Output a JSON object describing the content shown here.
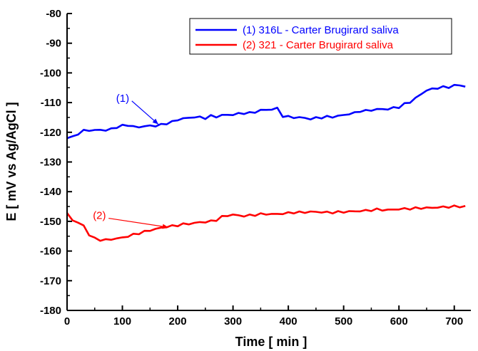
{
  "chart_data": {
    "type": "line",
    "xlabel": "Time [ min ]",
    "ylabel": "E [ mV vs Ag/AgCl ]",
    "xlim": [
      0,
      730
    ],
    "ylim": [
      -180,
      -80
    ],
    "xticks": [
      0,
      100,
      200,
      300,
      400,
      500,
      600,
      700
    ],
    "yticks": [
      -80,
      -90,
      -100,
      -110,
      -120,
      -130,
      -140,
      -150,
      -160,
      -170,
      -180
    ],
    "xtick_labels": [
      "0",
      "100",
      "200",
      "300",
      "400",
      "500",
      "600",
      "700"
    ],
    "ytick_labels": [
      "-80",
      "-90",
      "-100",
      "-110",
      "-120",
      "-130",
      "-140",
      "-150",
      "-160",
      "-170",
      "-180"
    ],
    "grid": false,
    "legend_position": "top-right",
    "series": [
      {
        "name": "(1) 316L - Carter Brugirard saliva",
        "color": "#0000ff",
        "x": [
          0,
          10,
          20,
          30,
          40,
          50,
          60,
          70,
          80,
          90,
          100,
          110,
          120,
          130,
          140,
          150,
          160,
          170,
          180,
          190,
          200,
          210,
          220,
          230,
          240,
          250,
          260,
          270,
          280,
          290,
          300,
          310,
          320,
          330,
          340,
          350,
          360,
          370,
          380,
          390,
          400,
          410,
          420,
          430,
          440,
          450,
          460,
          470,
          480,
          490,
          500,
          510,
          520,
          530,
          540,
          550,
          560,
          570,
          580,
          590,
          600,
          610,
          620,
          630,
          640,
          650,
          660,
          670,
          680,
          690,
          700,
          710,
          720
        ],
        "values": [
          -122,
          -121.5,
          -120.5,
          -119.5,
          -119.2,
          -119.5,
          -119,
          -119.5,
          -118.8,
          -118.3,
          -117.8,
          -117.5,
          -118.2,
          -118.2,
          -118,
          -117.8,
          -117.8,
          -117.5,
          -117,
          -116.5,
          -115.8,
          -115.3,
          -115.2,
          -114.8,
          -115,
          -115.2,
          -114.5,
          -114.8,
          -114.2,
          -114.2,
          -114,
          -113.8,
          -113.5,
          -113.5,
          -113.2,
          -112.5,
          -112.5,
          -112.2,
          -112,
          -114.5,
          -114.8,
          -115,
          -115,
          -115.2,
          -115.5,
          -115.2,
          -115,
          -114.8,
          -114.8,
          -114.5,
          -114.2,
          -113.8,
          -113.5,
          -112.8,
          -112.8,
          -112.5,
          -112.3,
          -112.2,
          -112.2,
          -111.8,
          -111.5,
          -110.5,
          -109.8,
          -108.5,
          -107.2,
          -105.8,
          -105.5,
          -105,
          -104.8,
          -104.8,
          -104.2,
          -104.2,
          -104.5
        ]
      },
      {
        "name": "(2) 321 - Carter Brugirard saliva",
        "color": "#ff0000",
        "x": [
          0,
          10,
          20,
          30,
          40,
          50,
          60,
          70,
          80,
          90,
          100,
          110,
          120,
          130,
          140,
          150,
          160,
          170,
          180,
          190,
          200,
          210,
          220,
          230,
          240,
          250,
          260,
          270,
          280,
          290,
          300,
          310,
          320,
          330,
          340,
          350,
          360,
          370,
          380,
          390,
          400,
          410,
          420,
          430,
          440,
          450,
          460,
          470,
          480,
          490,
          500,
          510,
          520,
          530,
          540,
          550,
          560,
          570,
          580,
          590,
          600,
          610,
          620,
          630,
          640,
          650,
          660,
          670,
          680,
          690,
          700,
          710,
          720
        ],
        "values": [
          -147.5,
          -149.5,
          -150.5,
          -151.5,
          -154.5,
          -155.8,
          -156.2,
          -156.3,
          -156,
          -155.8,
          -155.5,
          -155,
          -154.5,
          -154,
          -153.5,
          -153,
          -152.6,
          -152.2,
          -151.8,
          -151.6,
          -151.3,
          -151,
          -150.8,
          -150.6,
          -150.3,
          -150.2,
          -150,
          -149.5,
          -148.5,
          -148,
          -147.8,
          -148,
          -148.2,
          -148,
          -147.8,
          -147.6,
          -147.5,
          -147.6,
          -147.5,
          -147.4,
          -147.2,
          -147,
          -147,
          -146.9,
          -146.8,
          -146.8,
          -146.9,
          -147,
          -147,
          -146.9,
          -146.8,
          -146.7,
          -146.6,
          -146.5,
          -146.4,
          -146.2,
          -146,
          -146.1,
          -146.2,
          -146,
          -145.9,
          -145.8,
          -145.7,
          -145.6,
          -145.5,
          -145.5,
          -145.4,
          -145.3,
          -145.2,
          -145.1,
          -145,
          -145,
          -145
        ]
      }
    ],
    "annotations": [
      {
        "text": "(1)",
        "color": "#0000ff",
        "text_at": [
          50,
          -108.5
        ],
        "arrow_to": [
          165,
          -117.3
        ]
      },
      {
        "text": "(2)",
        "color": "#ff0000",
        "text_at": [
          8,
          -148
        ],
        "arrow_to": [
          183,
          -152
        ]
      }
    ]
  }
}
